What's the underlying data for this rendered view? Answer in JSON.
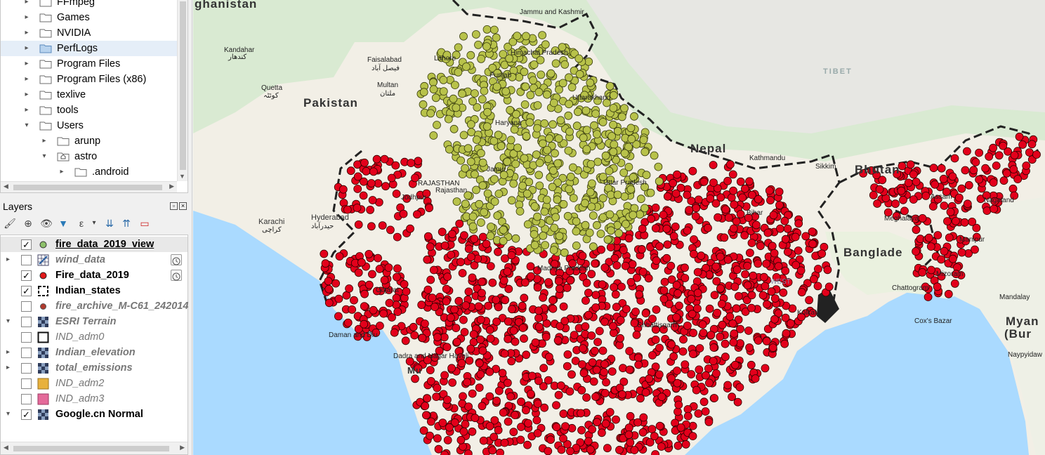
{
  "browser": {
    "items": [
      {
        "label": "FFmpeg",
        "level": 0,
        "expanded": false
      },
      {
        "label": "Games",
        "level": 0,
        "expanded": false
      },
      {
        "label": "NVIDIA",
        "level": 0,
        "expanded": false
      },
      {
        "label": "PerfLogs",
        "level": 0,
        "expanded": false,
        "highlighted": true
      },
      {
        "label": "Program Files",
        "level": 0,
        "expanded": false
      },
      {
        "label": "Program Files (x86)",
        "level": 0,
        "expanded": false
      },
      {
        "label": "texlive",
        "level": 0,
        "expanded": false
      },
      {
        "label": "tools",
        "level": 0,
        "expanded": false
      },
      {
        "label": "Users",
        "level": 0,
        "expanded": true
      },
      {
        "label": "arunp",
        "level": 1,
        "expanded": false
      },
      {
        "label": "astro",
        "level": 1,
        "expanded": true,
        "home": true
      },
      {
        "label": ".android",
        "level": 2,
        "expanded": false
      }
    ]
  },
  "layers_panel": {
    "title": "Layers",
    "layers": [
      {
        "name": "fire_data_2019_view",
        "checked": true,
        "style": "bold-underline",
        "symbol": "green-dot",
        "expander": "",
        "selected": true
      },
      {
        "name": "wind_data",
        "checked": false,
        "style": "italic-gray",
        "symbol": "vector-grid",
        "expander": "▸",
        "clock": true
      },
      {
        "name": "Fire_data_2019",
        "checked": true,
        "style": "bold",
        "symbol": "red-dot",
        "expander": "",
        "clock": true
      },
      {
        "name": "Indian_states",
        "checked": true,
        "style": "bold",
        "symbol": "dashed-polygon",
        "expander": ""
      },
      {
        "name": "fire_archive_M-C61_242014",
        "checked": false,
        "style": "italic-gray",
        "symbol": "darkred-dot",
        "expander": ""
      },
      {
        "name": "ESRI Terrain",
        "checked": false,
        "style": "italic-gray",
        "symbol": "raster",
        "expander": "▾"
      },
      {
        "name": "IND_adm0",
        "checked": false,
        "style": "italic-plain",
        "symbol": "outline-square",
        "expander": ""
      },
      {
        "name": "Indian_elevation",
        "checked": false,
        "style": "italic-gray",
        "symbol": "raster",
        "expander": "▸"
      },
      {
        "name": "total_emissions",
        "checked": false,
        "style": "italic-gray",
        "symbol": "raster",
        "expander": "▸"
      },
      {
        "name": "IND_adm2",
        "checked": false,
        "style": "italic-plain",
        "symbol": "orange-fill",
        "expander": ""
      },
      {
        "name": "IND_adm3",
        "checked": false,
        "style": "italic-plain",
        "symbol": "pink-fill",
        "expander": ""
      },
      {
        "name": "Google.cn Normal",
        "checked": true,
        "style": "bold",
        "symbol": "raster",
        "expander": "▾"
      }
    ]
  },
  "map": {
    "countries": {
      "afghanistan": "ghanistan",
      "pakistan": "Pakistan",
      "nepal": "Nepal",
      "bhutan": "Bhutan",
      "bangladesh": "Banglade",
      "tibet": "TIBET",
      "myanmar_1": "Myan",
      "myanmar_2": "(Bur"
    },
    "places": {
      "jammu": "Jammu and Kashmir",
      "himachal": "Himachal Pradesh",
      "kandahar": "Kandahar",
      "kandahar_local": "کندهار",
      "faisalabad": "Faisalabad",
      "faisalabad_local": "فیصل آباد",
      "lahore": "Lahore",
      "multan": "Multan",
      "multan_local": "ملتان",
      "quetta": "Quetta",
      "quetta_local": "کوئٹہ",
      "punjab": "Punjab",
      "uttarakhand": "Uttarakhand",
      "haryana": "Haryana",
      "rajasthan_caps": "RAJASTHAN",
      "rajasthan": "Rajasthan",
      "jaipur": "Jaipur",
      "jodhpur": "Jodhpur",
      "uttar_pradesh": "Uttar Pradesh",
      "kathmandu": "Kathmandu",
      "sikkim": "Sikkim",
      "hyderabad": "Hyderabad",
      "hyderabad_local": "حیدرآباد",
      "karachi": "Karachi",
      "karachi_local": "کراچی",
      "madhya_pradesh": "Madhya Pradesh",
      "gujarat": "Gujarat",
      "daman": "Daman and Diu",
      "dadra": "Dadra and Nagar Haveli",
      "mumbai": "Mu",
      "chhattisgarh": "Chhattisgarh",
      "bihar": "Bihar",
      "west_bengal": "WEST",
      "assam": "Assam",
      "nagaland": "Nagaland",
      "meghalaya": "Meghalaya",
      "manipur": "Manipur",
      "mizoram": "Mizoram",
      "chattogram": "Chattogram",
      "coxs_bazar": "Cox's Bazar",
      "mandalay": "Mandalay",
      "naypyidaw": "Naypyidaw",
      "kolkata": "Kolkata"
    }
  }
}
